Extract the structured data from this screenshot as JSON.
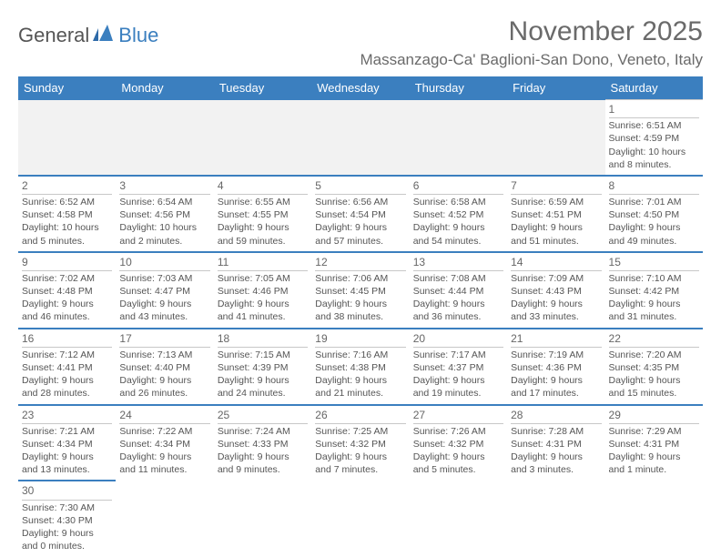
{
  "logo": {
    "general": "General",
    "blue": "Blue"
  },
  "title": "November 2025",
  "location": "Massanzago-Ca' Baglioni-San Dono, Veneto, Italy",
  "colors": {
    "header_bg": "#3b7fbf",
    "header_text": "#ffffff",
    "body_text": "#555555",
    "divider": "#3b7fbf",
    "subdivider": "#c8c8c8",
    "empty_bg": "#f2f2f2",
    "page_bg": "#ffffff"
  },
  "dayHeaders": [
    "Sunday",
    "Monday",
    "Tuesday",
    "Wednesday",
    "Thursday",
    "Friday",
    "Saturday"
  ],
  "weeks": [
    [
      null,
      null,
      null,
      null,
      null,
      null,
      {
        "n": "1",
        "sr": "6:51 AM",
        "ss": "4:59 PM",
        "dl1": "Daylight: 10 hours",
        "dl2": "and 8 minutes."
      }
    ],
    [
      {
        "n": "2",
        "sr": "6:52 AM",
        "ss": "4:58 PM",
        "dl1": "Daylight: 10 hours",
        "dl2": "and 5 minutes."
      },
      {
        "n": "3",
        "sr": "6:54 AM",
        "ss": "4:56 PM",
        "dl1": "Daylight: 10 hours",
        "dl2": "and 2 minutes."
      },
      {
        "n": "4",
        "sr": "6:55 AM",
        "ss": "4:55 PM",
        "dl1": "Daylight: 9 hours",
        "dl2": "and 59 minutes."
      },
      {
        "n": "5",
        "sr": "6:56 AM",
        "ss": "4:54 PM",
        "dl1": "Daylight: 9 hours",
        "dl2": "and 57 minutes."
      },
      {
        "n": "6",
        "sr": "6:58 AM",
        "ss": "4:52 PM",
        "dl1": "Daylight: 9 hours",
        "dl2": "and 54 minutes."
      },
      {
        "n": "7",
        "sr": "6:59 AM",
        "ss": "4:51 PM",
        "dl1": "Daylight: 9 hours",
        "dl2": "and 51 minutes."
      },
      {
        "n": "8",
        "sr": "7:01 AM",
        "ss": "4:50 PM",
        "dl1": "Daylight: 9 hours",
        "dl2": "and 49 minutes."
      }
    ],
    [
      {
        "n": "9",
        "sr": "7:02 AM",
        "ss": "4:48 PM",
        "dl1": "Daylight: 9 hours",
        "dl2": "and 46 minutes."
      },
      {
        "n": "10",
        "sr": "7:03 AM",
        "ss": "4:47 PM",
        "dl1": "Daylight: 9 hours",
        "dl2": "and 43 minutes."
      },
      {
        "n": "11",
        "sr": "7:05 AM",
        "ss": "4:46 PM",
        "dl1": "Daylight: 9 hours",
        "dl2": "and 41 minutes."
      },
      {
        "n": "12",
        "sr": "7:06 AM",
        "ss": "4:45 PM",
        "dl1": "Daylight: 9 hours",
        "dl2": "and 38 minutes."
      },
      {
        "n": "13",
        "sr": "7:08 AM",
        "ss": "4:44 PM",
        "dl1": "Daylight: 9 hours",
        "dl2": "and 36 minutes."
      },
      {
        "n": "14",
        "sr": "7:09 AM",
        "ss": "4:43 PM",
        "dl1": "Daylight: 9 hours",
        "dl2": "and 33 minutes."
      },
      {
        "n": "15",
        "sr": "7:10 AM",
        "ss": "4:42 PM",
        "dl1": "Daylight: 9 hours",
        "dl2": "and 31 minutes."
      }
    ],
    [
      {
        "n": "16",
        "sr": "7:12 AM",
        "ss": "4:41 PM",
        "dl1": "Daylight: 9 hours",
        "dl2": "and 28 minutes."
      },
      {
        "n": "17",
        "sr": "7:13 AM",
        "ss": "4:40 PM",
        "dl1": "Daylight: 9 hours",
        "dl2": "and 26 minutes."
      },
      {
        "n": "18",
        "sr": "7:15 AM",
        "ss": "4:39 PM",
        "dl1": "Daylight: 9 hours",
        "dl2": "and 24 minutes."
      },
      {
        "n": "19",
        "sr": "7:16 AM",
        "ss": "4:38 PM",
        "dl1": "Daylight: 9 hours",
        "dl2": "and 21 minutes."
      },
      {
        "n": "20",
        "sr": "7:17 AM",
        "ss": "4:37 PM",
        "dl1": "Daylight: 9 hours",
        "dl2": "and 19 minutes."
      },
      {
        "n": "21",
        "sr": "7:19 AM",
        "ss": "4:36 PM",
        "dl1": "Daylight: 9 hours",
        "dl2": "and 17 minutes."
      },
      {
        "n": "22",
        "sr": "7:20 AM",
        "ss": "4:35 PM",
        "dl1": "Daylight: 9 hours",
        "dl2": "and 15 minutes."
      }
    ],
    [
      {
        "n": "23",
        "sr": "7:21 AM",
        "ss": "4:34 PM",
        "dl1": "Daylight: 9 hours",
        "dl2": "and 13 minutes."
      },
      {
        "n": "24",
        "sr": "7:22 AM",
        "ss": "4:34 PM",
        "dl1": "Daylight: 9 hours",
        "dl2": "and 11 minutes."
      },
      {
        "n": "25",
        "sr": "7:24 AM",
        "ss": "4:33 PM",
        "dl1": "Daylight: 9 hours",
        "dl2": "and 9 minutes."
      },
      {
        "n": "26",
        "sr": "7:25 AM",
        "ss": "4:32 PM",
        "dl1": "Daylight: 9 hours",
        "dl2": "and 7 minutes."
      },
      {
        "n": "27",
        "sr": "7:26 AM",
        "ss": "4:32 PM",
        "dl1": "Daylight: 9 hours",
        "dl2": "and 5 minutes."
      },
      {
        "n": "28",
        "sr": "7:28 AM",
        "ss": "4:31 PM",
        "dl1": "Daylight: 9 hours",
        "dl2": "and 3 minutes."
      },
      {
        "n": "29",
        "sr": "7:29 AM",
        "ss": "4:31 PM",
        "dl1": "Daylight: 9 hours",
        "dl2": "and 1 minute."
      }
    ],
    [
      {
        "n": "30",
        "sr": "7:30 AM",
        "ss": "4:30 PM",
        "dl1": "Daylight: 9 hours",
        "dl2": "and 0 minutes."
      },
      null,
      null,
      null,
      null,
      null,
      null
    ]
  ]
}
